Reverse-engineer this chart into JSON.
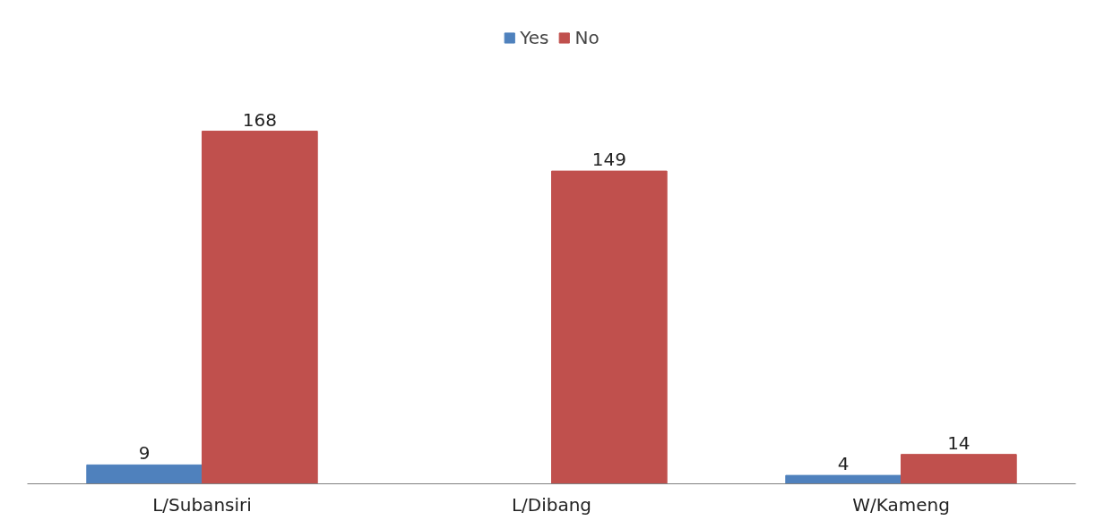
{
  "chart_data": {
    "type": "bar",
    "categories": [
      "L/Subansiri",
      "L/Dibang",
      "W/Kameng"
    ],
    "series": [
      {
        "name": "Yes",
        "color": "#4f81bd",
        "values": [
          9,
          null,
          4
        ]
      },
      {
        "name": "No",
        "color": "#c0504d",
        "values": [
          168,
          149,
          14
        ]
      }
    ],
    "data_labels": true,
    "legend": "top",
    "grid": false
  }
}
